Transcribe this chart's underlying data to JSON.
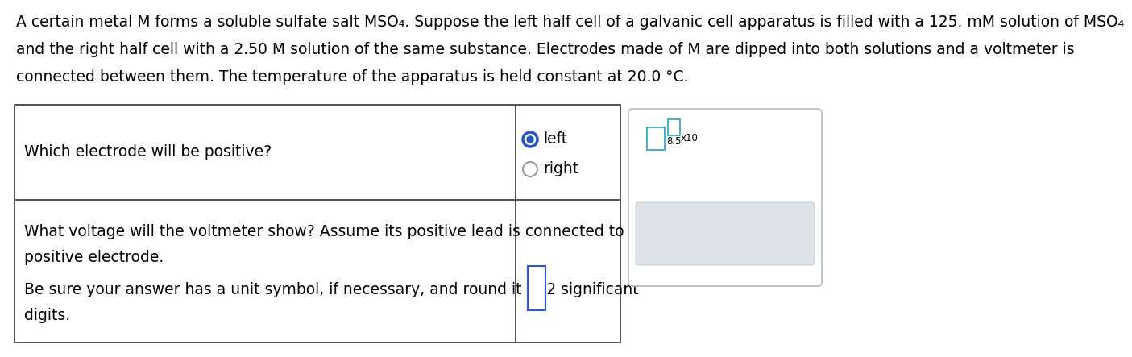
{
  "bg_color": "#ffffff",
  "text_color": "#000000",
  "title_line1": "A certain metal M forms a soluble sulfate salt MSO₄. Suppose the left half cell of a galvanic cell apparatus is filled with a 125. mM solution of MSO₄",
  "title_line2": "and the right half cell with a 2.50 M solution of the same substance. Electrodes made of M are dipped into both solutions and a voltmeter is",
  "title_line3": "connected between them. The temperature of the apparatus is held constant at 20.0 °C.",
  "q1_text": "Which electrode will be positive?",
  "q1_option1": "left",
  "q1_option2": "right",
  "q2_line1": "What voltage will the voltmeter show? Assume its positive lead is connected to the",
  "q2_line2": "positive electrode.",
  "q2_line3": "Be sure your answer has a unit symbol, if necessary, and round it to 2 significant",
  "q2_line4": "digits.",
  "radio_selected_color": "#2255cc",
  "radio_unselected_color": "#999999",
  "input_box_color": "#3355cc",
  "widget_box_color": "#33aacc",
  "widget_button_color": "#4d8fac",
  "widget_btn_bg": "#dde3e8",
  "table_border_color": "#444444",
  "panel_border_color": "#b0bec5",
  "fontsize": 13.5,
  "fontsize_small": 8.5,
  "fontsize_widget": 17
}
